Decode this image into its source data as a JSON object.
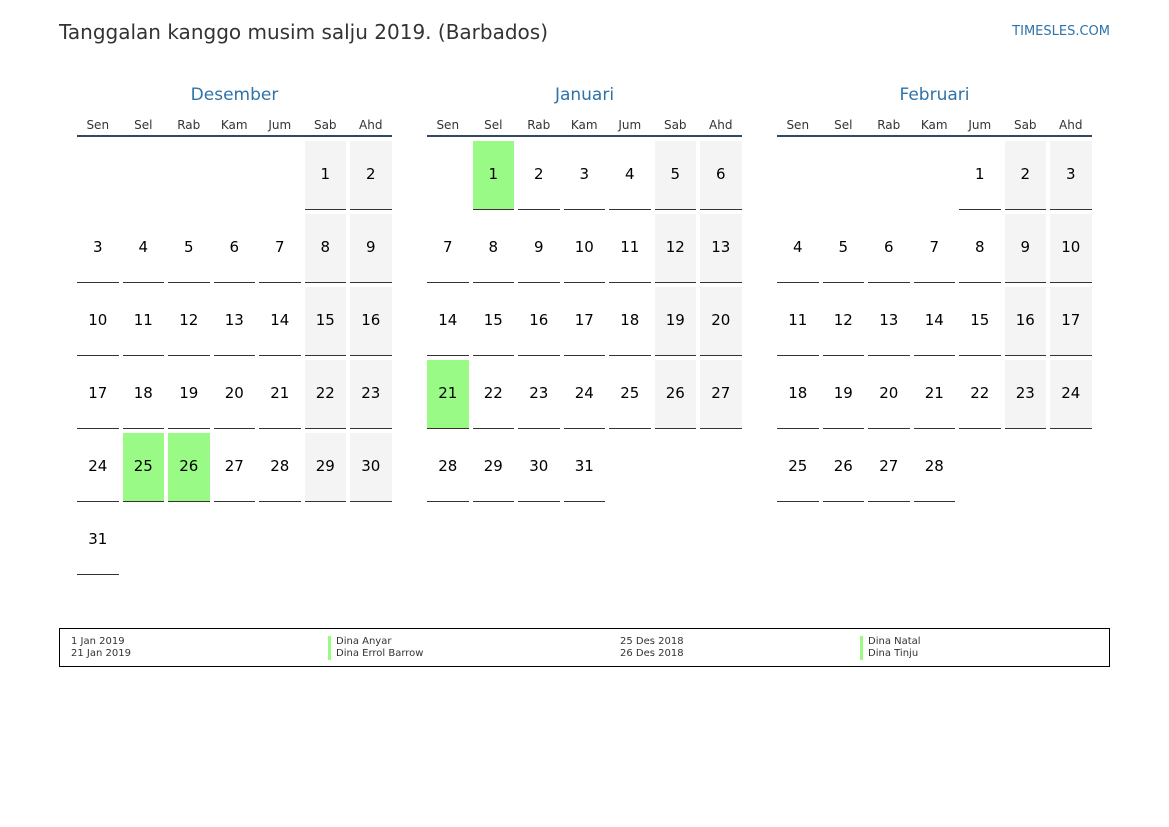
{
  "header": {
    "title": "Tanggalan kanggo musim salju 2019. (Barbados)",
    "site": "TIMESLES.COM"
  },
  "weekdays": [
    "Sen",
    "Sel",
    "Rab",
    "Kam",
    "Jum",
    "Sab",
    "Ahd"
  ],
  "colors": {
    "accent": "#2f72a8",
    "holiday": "#99fa85",
    "weekend": "#f4f4f4"
  },
  "months": [
    {
      "name": "Desember",
      "start_offset": 5,
      "days": 31,
      "holidays": [
        25,
        26
      ]
    },
    {
      "name": "Januari",
      "start_offset": 1,
      "days": 31,
      "holidays": [
        1,
        21
      ]
    },
    {
      "name": "Februari",
      "start_offset": 4,
      "days": 28,
      "holidays": []
    }
  ],
  "legend": [
    {
      "date": "1 Jan 2019",
      "name": "Dina Anyar"
    },
    {
      "date": "21 Jan 2019",
      "name": "Dina Errol Barrow"
    },
    {
      "date": "25 Des 2018",
      "name": "Dina Natal"
    },
    {
      "date": "26 Des 2018",
      "name": "Dina Tinju"
    }
  ]
}
